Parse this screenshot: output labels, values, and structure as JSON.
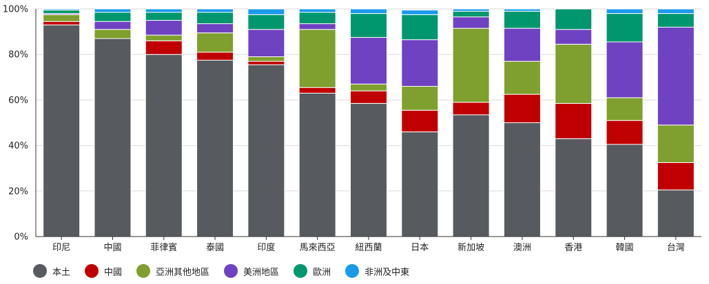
{
  "chart_data": {
    "type": "bar",
    "stacked": true,
    "ylim": [
      0,
      100
    ],
    "y_ticks": [
      0,
      20,
      40,
      60,
      80,
      100
    ],
    "y_tick_format": "{v}%",
    "grid": true,
    "legend_position": "bottom-left",
    "categories": [
      "印尼",
      "中國",
      "菲律賓",
      "泰國",
      "印度",
      "馬來西亞",
      "紐西蘭",
      "日本",
      "新加坡",
      "澳洲",
      "香港",
      "韓國",
      "台灣"
    ],
    "series": [
      {
        "name": "本土",
        "color": "#575a5e",
        "values": [
          93.0,
          87.0,
          80.0,
          77.5,
          75.5,
          63.0,
          58.5,
          46.0,
          53.5,
          50.0,
          43.0,
          40.5,
          20.5
        ]
      },
      {
        "name": "中國",
        "color": "#c00000",
        "values": [
          1.5,
          0.0,
          6.0,
          3.5,
          1.5,
          2.5,
          5.5,
          9.5,
          5.5,
          12.5,
          15.5,
          10.5,
          12.0
        ]
      },
      {
        "name": "亞洲其他地區",
        "color": "#7f9f2e",
        "values": [
          3.0,
          4.0,
          2.5,
          8.5,
          2.0,
          25.5,
          3.0,
          10.5,
          32.5,
          14.5,
          26.0,
          10.0,
          16.5
        ]
      },
      {
        "name": "美洲地區",
        "color": "#6f42c1",
        "values": [
          0.5,
          3.5,
          6.5,
          4.0,
          12.0,
          2.5,
          20.5,
          20.5,
          5.0,
          14.5,
          6.5,
          24.5,
          43.0
        ]
      },
      {
        "name": "歐洲",
        "color": "#00966e",
        "values": [
          1.5,
          4.0,
          3.5,
          5.0,
          6.5,
          5.0,
          10.5,
          11.0,
          2.5,
          7.5,
          9.0,
          12.5,
          6.0
        ]
      },
      {
        "name": "非洲及中東",
        "color": "#1a9aeb",
        "values": [
          0.5,
          1.5,
          1.5,
          1.5,
          2.5,
          1.5,
          2.0,
          2.0,
          1.0,
          1.0,
          0.0,
          2.0,
          2.0
        ]
      }
    ]
  }
}
